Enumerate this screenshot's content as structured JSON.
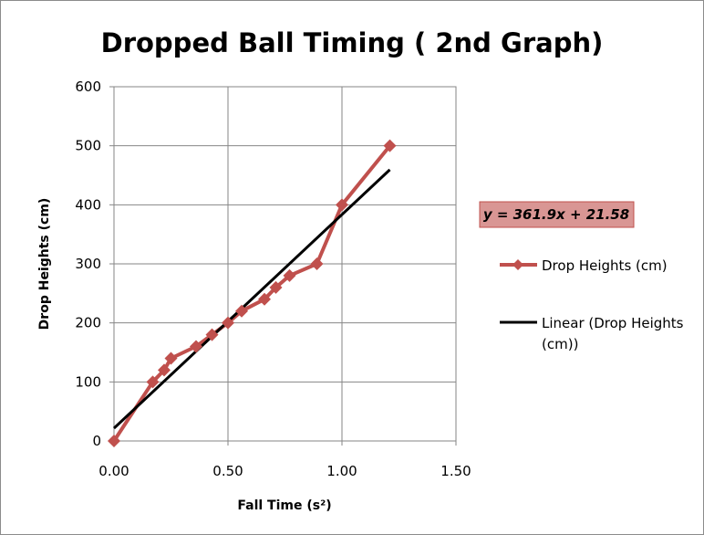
{
  "chart_data": {
    "type": "scatter",
    "title": "Dropped Ball Timing ( 2nd Graph)",
    "xlabel": "Fall Time (s²)",
    "ylabel": "Drop Heights (cm)",
    "xlim": [
      0,
      1.5
    ],
    "ylim": [
      0,
      600
    ],
    "x_ticks": [
      "0.00",
      "0.50",
      "1.00",
      "1.50"
    ],
    "y_ticks": [
      "0",
      "100",
      "200",
      "300",
      "400",
      "500",
      "600"
    ],
    "grid": true,
    "legend_position": "right",
    "series": [
      {
        "name": "Drop Heights (cm)",
        "color": "#c0504d",
        "marker": "diamond",
        "points": [
          {
            "x": 0.0,
            "y": 0
          },
          {
            "x": 0.17,
            "y": 100
          },
          {
            "x": 0.22,
            "y": 120
          },
          {
            "x": 0.25,
            "y": 140
          },
          {
            "x": 0.36,
            "y": 160
          },
          {
            "x": 0.43,
            "y": 180
          },
          {
            "x": 0.5,
            "y": 200
          },
          {
            "x": 0.56,
            "y": 220
          },
          {
            "x": 0.66,
            "y": 240
          },
          {
            "x": 0.71,
            "y": 260
          },
          {
            "x": 0.77,
            "y": 280
          },
          {
            "x": 0.89,
            "y": 300
          },
          {
            "x": 1.0,
            "y": 400
          },
          {
            "x": 1.21,
            "y": 500
          }
        ]
      }
    ],
    "trendline": {
      "name": "Linear (Drop Heights (cm))",
      "color": "#000000",
      "slope": 361.9,
      "intercept": 21.58,
      "x_range": [
        0,
        1.21
      ],
      "equation": "y = 361.9x + 21.58",
      "equation_bg": "#d99694"
    },
    "legend": {
      "series_label": "Drop Heights (cm)",
      "trend_label_line1": "Linear (Drop Heights",
      "trend_label_line2": "(cm))"
    }
  }
}
